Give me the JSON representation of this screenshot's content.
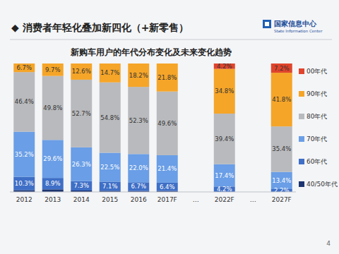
{
  "page": {
    "heading": "◆ 消费者年轻化叠加新四化（+新零售）",
    "logo": "国家信息中心",
    "logo_en": "State Information Center",
    "page_number": "4"
  },
  "chart_data": {
    "type": "bar",
    "stacked": true,
    "data_labels": true,
    "legend": "right",
    "tick_labels": "x",
    "grid": false,
    "title": "新购车用户的年代分布变化及未来变化趋势",
    "categories": [
      "2012",
      "2013",
      "2014",
      "2015",
      "2016",
      "2017F",
      "…",
      "2022F",
      "…",
      "2027F"
    ],
    "ylim": [
      0,
      100
    ],
    "series": [
      {
        "name": "40/50年代",
        "color": "#1d3570",
        "values": [
          1.4,
          2.0,
          1.1,
          0.9,
          0.8,
          0.8,
          null,
          0,
          null,
          0
        ],
        "value_labels": [
          null,
          null,
          null,
          null,
          null,
          null,
          null,
          null,
          null,
          null
        ]
      },
      {
        "name": "60年代",
        "color": "#3f6fc6",
        "values": [
          10.3,
          8.9,
          7.3,
          7.1,
          6.7,
          6.4,
          null,
          4.2,
          null,
          2.2
        ],
        "value_labels": [
          "10.3%",
          "8.9%",
          "7.3%",
          "7.1%",
          "6.7%",
          "6.4%",
          null,
          "4.2%",
          null,
          "2.2%"
        ]
      },
      {
        "name": "70年代",
        "color": "#6a9ee6",
        "values": [
          35.2,
          29.6,
          26.3,
          22.5,
          22.0,
          21.4,
          null,
          17.4,
          null,
          13.4
        ],
        "value_labels": [
          "35.2%",
          "29.6%",
          "26.3%",
          "22.5%",
          "22.0%",
          "21.4%",
          null,
          "17.4%",
          null,
          "13.4%"
        ]
      },
      {
        "name": "80年代",
        "color": "#b9babd",
        "values": [
          46.4,
          49.8,
          52.7,
          54.8,
          52.3,
          49.6,
          null,
          39.4,
          null,
          35.4
        ],
        "value_labels": [
          "46.4%",
          "49.8%",
          "52.7%",
          "54.8%",
          "52.3%",
          "49.6%",
          null,
          "39.4%",
          null,
          "35.4%"
        ]
      },
      {
        "name": "90年代",
        "color": "#f5a528",
        "values": [
          6.7,
          9.7,
          12.6,
          14.7,
          18.2,
          21.8,
          null,
          34.8,
          null,
          41.8
        ],
        "value_labels": [
          "6.7%",
          "9.7%",
          "12.6%",
          "14.7%",
          "18.2%",
          "21.8%",
          null,
          "34.8%",
          null,
          "41.8%"
        ]
      },
      {
        "name": "00年代",
        "color": "#e0442c",
        "values": [
          0,
          0,
          0,
          0,
          0,
          0,
          null,
          4.2,
          null,
          7.2
        ],
        "value_labels": [
          null,
          null,
          null,
          null,
          null,
          null,
          null,
          "4.2%",
          null,
          "7.2%"
        ]
      }
    ]
  }
}
